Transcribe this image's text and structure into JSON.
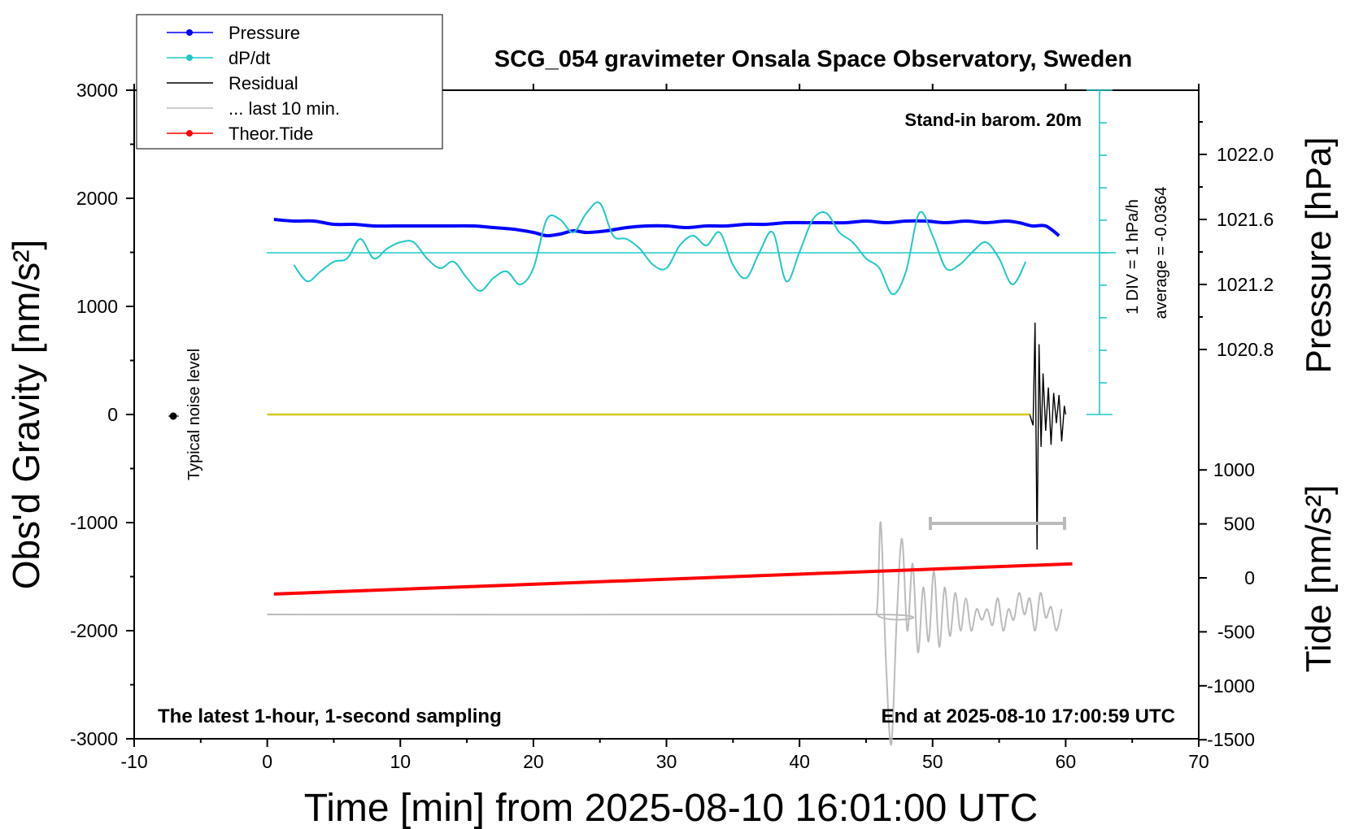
{
  "chart_data": {
    "type": "line",
    "title": "SCG_054 gravimeter Onsala Space Observatory, Sweden",
    "xlabel": "Time [min] from 2025-08-10 16:01:00 UTC",
    "ylabel_left": "Obs'd Gravity [nm/s²]",
    "ylabel_right_top": "Pressure [hPa]",
    "ylabel_right_bottom": "Tide [nm/s²]",
    "xlim": [
      -10,
      70
    ],
    "ylim_left": [
      -3000,
      3000
    ],
    "x_ticks": [
      -10,
      0,
      10,
      20,
      30,
      40,
      50,
      60,
      70
    ],
    "x_tick_labels": [
      "-10",
      "0",
      "10",
      "20",
      "30",
      "40",
      "50",
      "60",
      "70"
    ],
    "y_ticks_left": [
      3000,
      2000,
      1000,
      0,
      -1000,
      -2000,
      -3000
    ],
    "y_tick_labels_left": [
      "3000",
      "2000",
      "1000",
      "0",
      "-1000",
      "-2000",
      "-3000"
    ],
    "pressure_axis": {
      "ticks": [
        1022.0,
        1021.6,
        1021.2,
        1020.8
      ],
      "tick_labels": [
        "1022.0",
        "1021.6",
        "1021.2",
        "1020.8"
      ]
    },
    "tide_axis": {
      "ticks": [
        1000,
        500,
        0,
        -500,
        -1000,
        -1500
      ],
      "tick_labels": [
        "1000",
        "500",
        "0",
        "-500",
        "-1000",
        "-1500"
      ]
    },
    "legend": [
      {
        "label": "Pressure",
        "color": "#0000ff",
        "marker": true
      },
      {
        "label": "dP/dt",
        "color": "#20c8c8",
        "marker": true
      },
      {
        "label": "Residual",
        "color": "#000000",
        "marker": false
      },
      {
        "label": "... last 10 min.",
        "color": "#bbbbbb",
        "marker": false
      },
      {
        "label": "Theor.Tide",
        "color": "#ff0000",
        "marker": true
      }
    ],
    "annotations": {
      "barometer": "Stand-in barom. 20m",
      "div_note": "1 DIV = 1 hPa/h",
      "average_note": "average = -0.0364",
      "noise": "Typical noise level",
      "bottom_left": "The latest 1-hour, 1-second sampling",
      "bottom_right": "End at 2025-08-10 17:00:59 UTC"
    },
    "series": [
      {
        "name": "Pressure",
        "color": "#0000ff",
        "axis": "pressure_hPa",
        "x": [
          0.5,
          2,
          3.5,
          5,
          6.5,
          8,
          9.5,
          11,
          12.5,
          14,
          15.5,
          17,
          18.5,
          20,
          21,
          22,
          23,
          24,
          25.5,
          27,
          28.5,
          30,
          31.5,
          33,
          34.5,
          36,
          37.5,
          39,
          40.5,
          42,
          43.5,
          45,
          46.5,
          48,
          49.5,
          51,
          52.5,
          54,
          55.5,
          56.5,
          57.5,
          58.5,
          59.5
        ],
        "y": [
          1021.6,
          1021.59,
          1021.59,
          1021.57,
          1021.57,
          1021.56,
          1021.56,
          1021.56,
          1021.56,
          1021.56,
          1021.56,
          1021.55,
          1021.54,
          1021.52,
          1021.5,
          1021.51,
          1021.53,
          1021.52,
          1021.53,
          1021.55,
          1021.56,
          1021.56,
          1021.55,
          1021.56,
          1021.56,
          1021.57,
          1021.57,
          1021.58,
          1021.58,
          1021.58,
          1021.58,
          1021.59,
          1021.58,
          1021.59,
          1021.59,
          1021.58,
          1021.59,
          1021.58,
          1021.59,
          1021.58,
          1021.56,
          1021.56,
          1021.5
        ]
      },
      {
        "name": "dP/dt",
        "color": "#20c8c8",
        "axis": "div_1hPa_per_h",
        "baseline_pressure": 1021.4,
        "x": [
          2,
          3,
          4,
          5,
          6,
          7,
          8,
          9,
          10,
          11,
          12,
          13,
          14,
          15,
          16,
          17,
          18,
          19,
          20,
          21,
          22,
          23,
          24,
          25,
          26,
          27,
          28,
          29,
          30,
          31,
          32,
          33,
          34,
          35,
          36,
          37,
          38,
          39,
          40,
          41,
          42,
          43,
          44,
          45,
          46,
          47,
          48,
          49,
          50,
          51,
          52,
          53,
          54,
          55,
          56,
          57
        ],
        "y": [
          -0.4,
          -0.9,
          -0.6,
          -0.3,
          -0.2,
          0.4,
          -0.2,
          0.1,
          0.3,
          0.3,
          -0.2,
          -0.5,
          -0.3,
          -0.8,
          -1.2,
          -0.8,
          -0.6,
          -1.0,
          -0.5,
          1.0,
          1.0,
          0.6,
          1.2,
          1.5,
          0.5,
          0.4,
          0.1,
          -0.4,
          -0.5,
          0.2,
          0.5,
          0.2,
          0.6,
          -0.4,
          -0.8,
          0.0,
          0.6,
          -0.9,
          0.0,
          1.0,
          1.2,
          0.6,
          0.3,
          -0.2,
          -0.5,
          -1.3,
          -0.6,
          1.2,
          0.5,
          -0.5,
          -0.4,
          0.0,
          0.3,
          -0.2,
          -1.0,
          -0.3
        ]
      },
      {
        "name": "Residual",
        "color": "#000000",
        "axis": "gravity_nm_s2",
        "x": [
          0,
          57.3,
          57.55,
          57.7,
          57.85,
          58.0,
          58.15,
          58.3,
          58.5,
          58.7,
          58.9,
          59.1,
          59.3,
          59.5,
          59.7,
          59.9,
          60.0
        ],
        "y": [
          0,
          0,
          -100,
          850,
          -1250,
          650,
          -300,
          380,
          -150,
          250,
          -280,
          200,
          -80,
          180,
          -250,
          80,
          0
        ]
      },
      {
        "name": "... last 10 min.",
        "color": "#bbbbbb",
        "axis": "gravity_nm_s2",
        "x": [
          0,
          45,
          45.8,
          46.1,
          46.5,
          46.9,
          47.3,
          47.7,
          48.1,
          48.5,
          48.9,
          49.3,
          49.7,
          50.1,
          50.5,
          50.9,
          51.3,
          51.7,
          52.1,
          52.5,
          52.9,
          53.3,
          53.7,
          54.1,
          54.5,
          54.9,
          55.3,
          55.7,
          56.1,
          56.5,
          56.9,
          57.3,
          57.7,
          58.1,
          58.5,
          58.9,
          59.3,
          59.7
        ],
        "y": [
          -1850,
          -1850,
          -1830,
          -1000,
          -2300,
          -3050,
          -1900,
          -1150,
          -2000,
          -1380,
          -2200,
          -1600,
          -2100,
          -1450,
          -2150,
          -1600,
          -2050,
          -1650,
          -2000,
          -1700,
          -2000,
          -1800,
          -1900,
          -1800,
          -1950,
          -1700,
          -2000,
          -1800,
          -1900,
          -1650,
          -1850,
          -1700,
          -2000,
          -1650,
          -1880,
          -1780,
          -2000,
          -1800
        ]
      },
      {
        "name": "Theor.Tide",
        "color": "#ff0000",
        "axis": "tide_nm_s2",
        "x": [
          0.5,
          60.5
        ],
        "y": [
          -150,
          130
        ]
      }
    ]
  }
}
